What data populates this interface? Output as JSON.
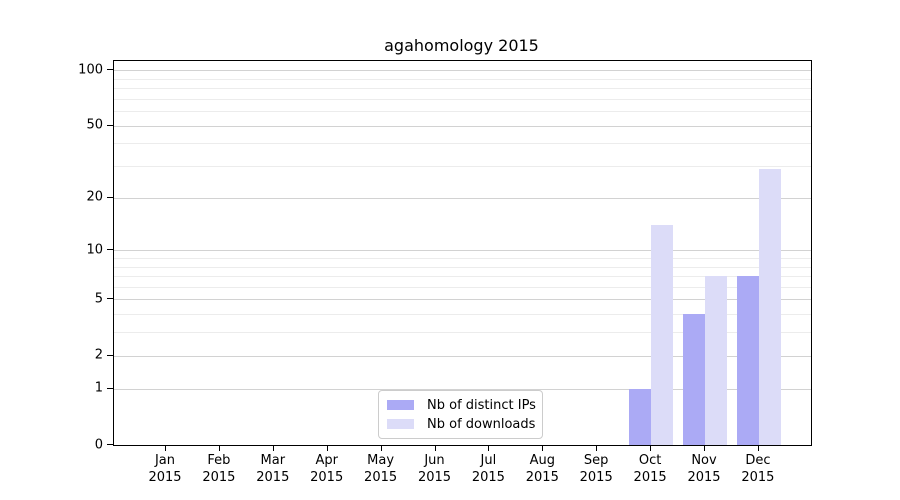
{
  "title": "agahomology 2015",
  "chart_data": {
    "type": "bar",
    "title": "agahomology 2015",
    "x_tick_months": [
      "Jan",
      "Feb",
      "Mar",
      "Apr",
      "May",
      "Jun",
      "Jul",
      "Aug",
      "Sep",
      "Oct",
      "Nov",
      "Dec"
    ],
    "x_tick_year": "2015",
    "series": [
      {
        "name": "Nb of distinct IPs",
        "color": "#abaaf5",
        "values": [
          0,
          0,
          0,
          0,
          0,
          0,
          0,
          0,
          0,
          1,
          4,
          7
        ]
      },
      {
        "name": "Nb of downloads",
        "color": "#dcdcf8",
        "values": [
          0,
          0,
          0,
          0,
          0,
          0,
          0,
          0,
          0,
          14,
          7,
          29
        ]
      }
    ],
    "y_scale": "log1p",
    "y_axis_ticks": [
      0,
      1,
      2,
      5,
      10,
      20,
      50,
      100
    ],
    "y_minor_gridlines": [
      3,
      4,
      6,
      7,
      8,
      9,
      30,
      40,
      60,
      70,
      80,
      90
    ],
    "y_top_value": 112,
    "ylim": [
      0,
      112
    ],
    "grid": "on",
    "legend_position": "lower center",
    "colors": {
      "grid_major": "#d2d2d2",
      "grid_minor": "#ececec",
      "spine": "#000000",
      "text": "#000000"
    }
  }
}
